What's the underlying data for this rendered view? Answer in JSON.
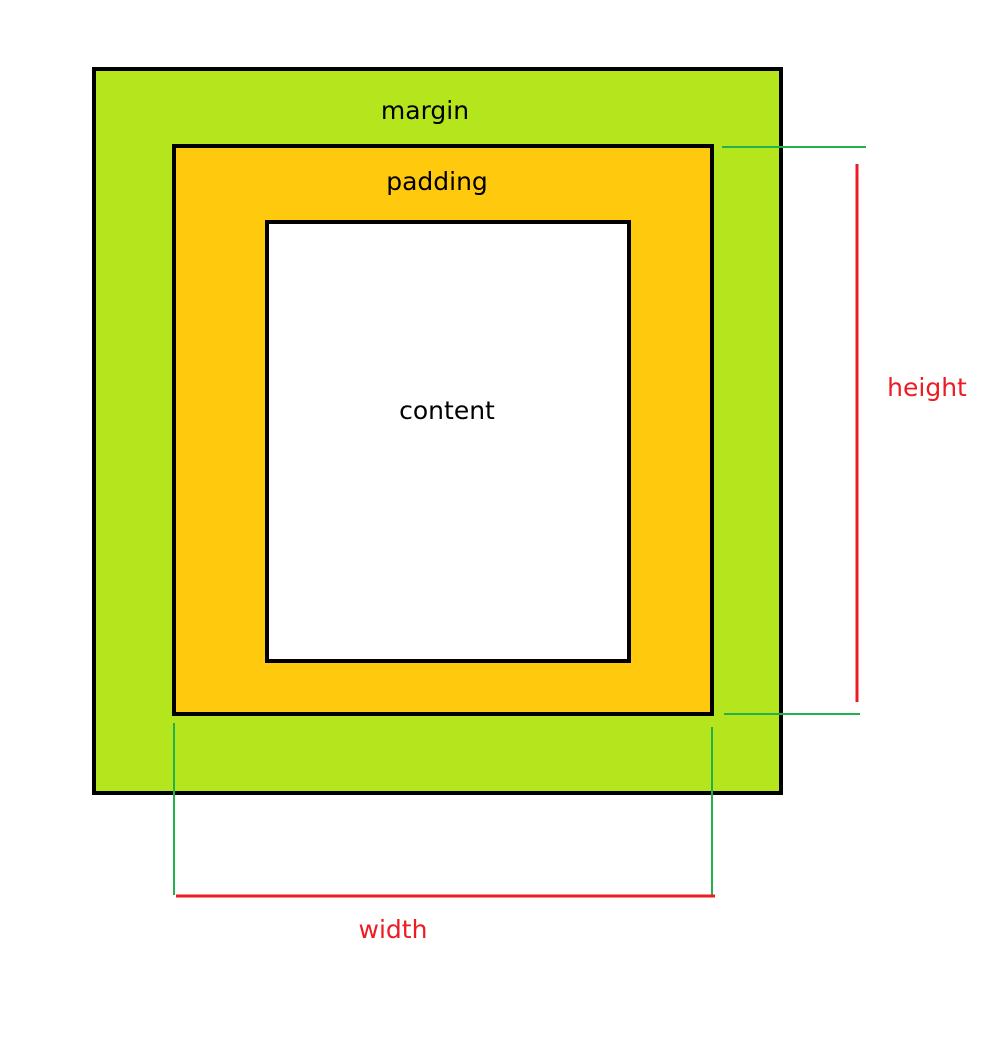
{
  "labels": {
    "margin": "margin",
    "padding": "padding",
    "content": "content",
    "height": "height",
    "width": "width"
  },
  "colors": {
    "margin_fill": "#b5e61d",
    "padding_fill": "#ffc90e",
    "content_fill": "#ffffff",
    "border": "#000000",
    "extension_line": "#22b14c",
    "dimension": "#ed1c24"
  }
}
